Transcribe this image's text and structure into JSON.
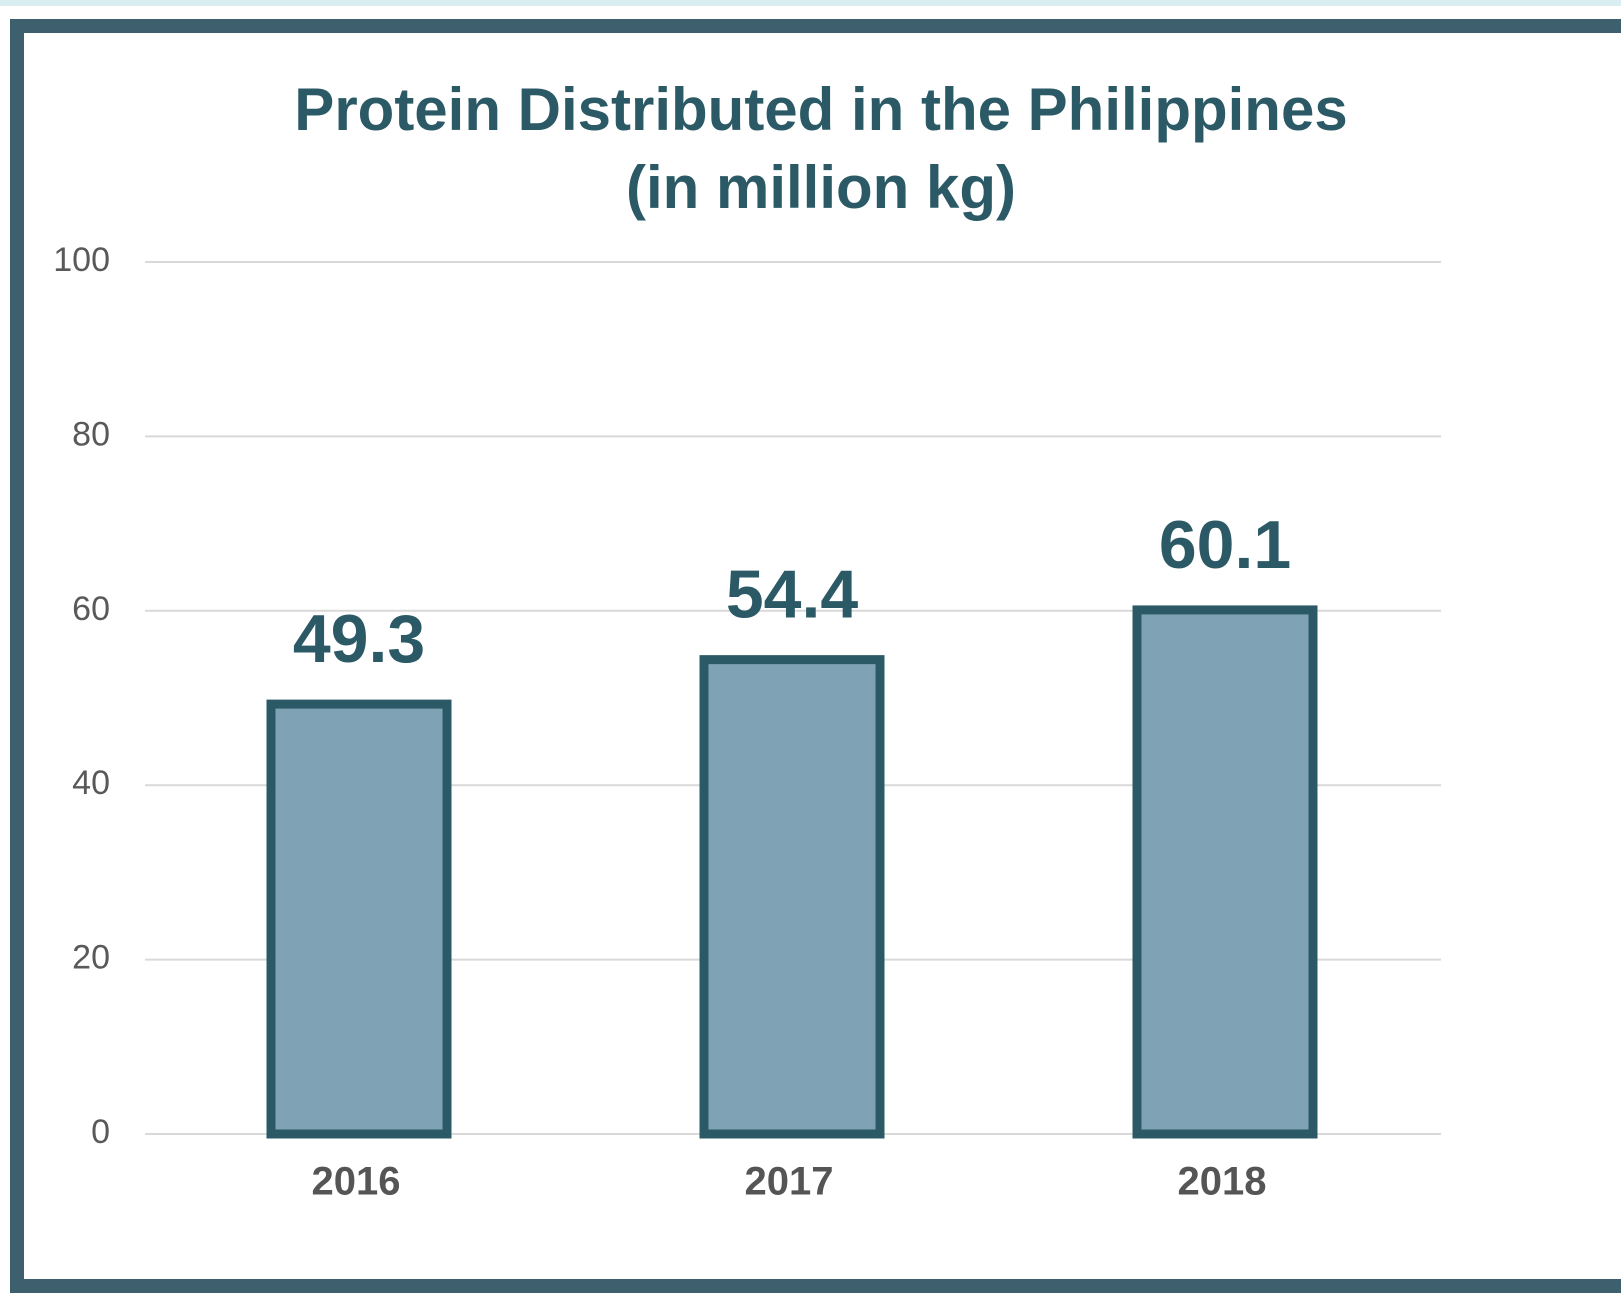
{
  "chart_data": {
    "type": "bar",
    "title": [
      "Protein Distributed in the Philippines",
      "(in million kg)"
    ],
    "categories": [
      "2016",
      "2017",
      "2018"
    ],
    "values": [
      49.3,
      54.4,
      60.1
    ],
    "color": "#7fa3b5",
    "edge_color": "#2b5a66",
    "ylim": [
      0,
      100
    ],
    "yticks": [
      0,
      20,
      40,
      60,
      80,
      100
    ],
    "grid": true
  }
}
